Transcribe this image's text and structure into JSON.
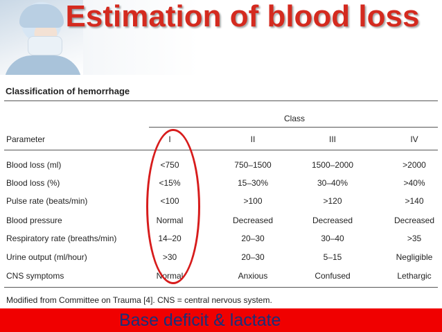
{
  "slide": {
    "title": "Estimation of blood loss",
    "banner_text": "Base deficit & lactate",
    "banner_color": "#f00000",
    "title_color": "#d42a1f"
  },
  "table": {
    "title": "Classification of hemorrhage",
    "class_header": "Class",
    "parameter_header": "Parameter",
    "classes": [
      "I",
      "II",
      "III",
      "IV"
    ],
    "rows": [
      {
        "parameter": "Blood loss (ml)",
        "values": [
          "<750",
          "750–1500",
          "1500–2000",
          ">2000"
        ]
      },
      {
        "parameter": "Blood loss (%)",
        "values": [
          "<15%",
          "15–30%",
          "30–40%",
          ">40%"
        ]
      },
      {
        "parameter": "Pulse rate (beats/min)",
        "values": [
          "<100",
          ">100",
          ">120",
          ">140"
        ]
      },
      {
        "parameter": "Blood pressure",
        "values": [
          "Normal",
          "Decreased",
          "Decreased",
          "Decreased"
        ]
      },
      {
        "parameter": "Respiratory rate (breaths/min)",
        "values": [
          "14–20",
          "20–30",
          "30–40",
          ">35"
        ]
      },
      {
        "parameter": "Urine output (ml/hour)",
        "values": [
          ">30",
          "20–30",
          "5–15",
          "Negligible"
        ]
      },
      {
        "parameter": "CNS symptoms",
        "values": [
          "Normal",
          "Anxious",
          "Confused",
          "Lethargic"
        ]
      }
    ],
    "footnote": "Modified from Committee on Trauma [4]. CNS = central nervous system."
  },
  "icons": {
    "header_photo": "surgeon-photo",
    "annotation": "red-oval-annotation"
  }
}
